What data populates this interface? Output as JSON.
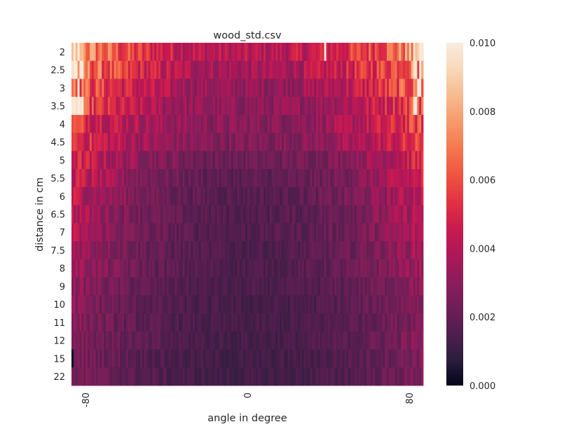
{
  "chart_data": {
    "type": "heatmap",
    "title": "wood_std.csv",
    "xlabel": "angle in degree",
    "ylabel": "distance in cm",
    "x_range": [
      -87,
      87
    ],
    "x_tick_labels": [
      "-80",
      "0",
      "80"
    ],
    "x_tick_values": [
      -80,
      0,
      80
    ],
    "y_categories": [
      "2",
      "2.5",
      "3",
      "3.5",
      "4",
      "4.5",
      "5",
      "5.5",
      "6",
      "6.5",
      "7",
      "7.5",
      "8",
      "9",
      "10",
      "11",
      "12",
      "15",
      "22"
    ],
    "colorbar": {
      "min": 0.0,
      "max": 0.01,
      "ticks": [
        0.0,
        0.002,
        0.004,
        0.006,
        0.008,
        0.01
      ],
      "tick_labels": [
        "0.000",
        "0.002",
        "0.004",
        "0.006",
        "0.008",
        "0.010"
      ],
      "colormap": "rocket",
      "colors": [
        "#03051a",
        "#2c1e3d",
        "#511e4d",
        "#701f57",
        "#8e1d5b",
        "#ae1759",
        "#cb1b4f",
        "#e13342",
        "#f0553f",
        "#f5774e",
        "#f69a6a",
        "#f6bb8f",
        "#f8d8b9",
        "#faebdd"
      ]
    },
    "row_profiles": [
      {
        "distance": "2",
        "edge": 0.008,
        "center": 0.004
      },
      {
        "distance": "2.5",
        "edge": 0.0075,
        "center": 0.0036
      },
      {
        "distance": "3",
        "edge": 0.0068,
        "center": 0.0032
      },
      {
        "distance": "3.5",
        "edge": 0.0062,
        "center": 0.003
      },
      {
        "distance": "4",
        "edge": 0.0058,
        "center": 0.0029
      },
      {
        "distance": "4.5",
        "edge": 0.0055,
        "center": 0.0027
      },
      {
        "distance": "5",
        "edge": 0.005,
        "center": 0.0022
      },
      {
        "distance": "5.5",
        "edge": 0.0047,
        "center": 0.0018
      },
      {
        "distance": "6",
        "edge": 0.0044,
        "center": 0.0017
      },
      {
        "distance": "6.5",
        "edge": 0.0042,
        "center": 0.0016
      },
      {
        "distance": "7",
        "edge": 0.004,
        "center": 0.0016
      },
      {
        "distance": "7.5",
        "edge": 0.0038,
        "center": 0.0015
      },
      {
        "distance": "8",
        "edge": 0.0036,
        "center": 0.0015
      },
      {
        "distance": "9",
        "edge": 0.0032,
        "center": 0.0014
      },
      {
        "distance": "10",
        "edge": 0.003,
        "center": 0.0013
      },
      {
        "distance": "11",
        "edge": 0.0029,
        "center": 0.0013
      },
      {
        "distance": "12",
        "edge": 0.0029,
        "center": 0.0013
      },
      {
        "distance": "15",
        "edge": 0.0028,
        "center": 0.0012
      },
      {
        "distance": "22",
        "edge": 0.0027,
        "center": 0.0012
      }
    ],
    "grid": false
  }
}
